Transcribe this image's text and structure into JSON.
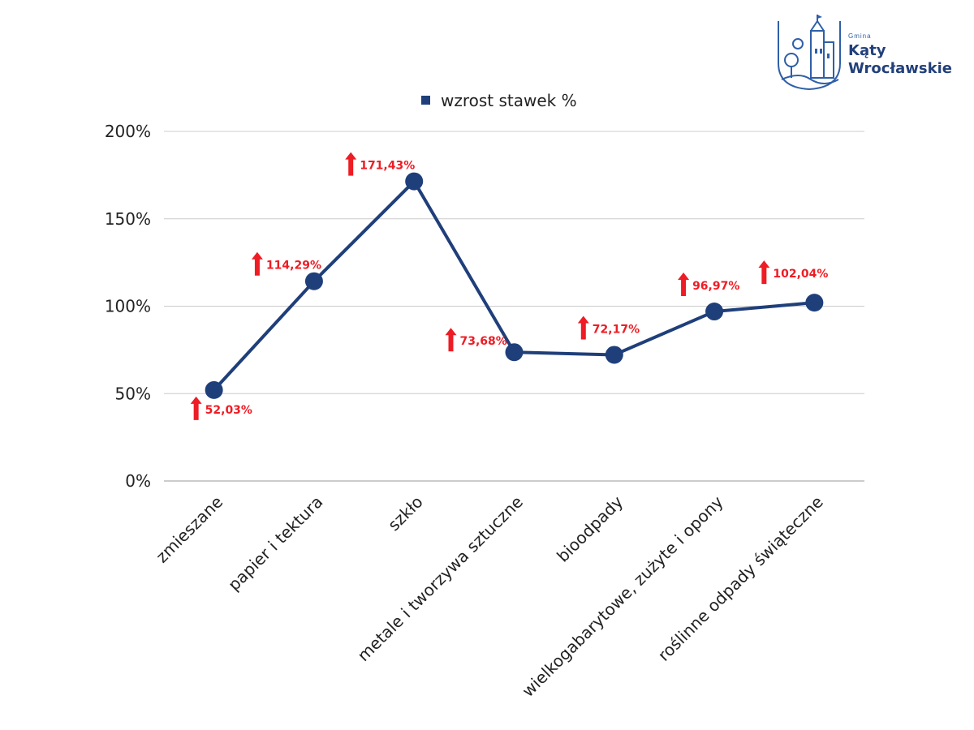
{
  "logo": {
    "small": "Gmina",
    "line1": "Kąty",
    "line2": "Wrocławskie"
  },
  "colors": {
    "series": "#1f3f7a",
    "arrow": "#ee1c24",
    "grid": "#cccccc",
    "axis_text": "#222222",
    "logo": "#2f5fa8"
  },
  "chart_data": {
    "type": "line",
    "legend": {
      "position": "top-center"
    },
    "grid": true,
    "ylim": [
      0,
      2
    ],
    "ytick_values": [
      0,
      0.5,
      1,
      1.5,
      2
    ],
    "ytick_labels": [
      "0%",
      "50%",
      "100%",
      "150%",
      "200%"
    ],
    "categories": [
      "zmieszane",
      "papier i tektura",
      "szkło",
      "metale i tworzywa sztuczne",
      "bioodpady",
      "wielkogabarytowe, zużyte i opony",
      "roślinne odpady świąteczne"
    ],
    "series": [
      {
        "name": "wzrost stawek %",
        "values": [
          0.5203,
          1.1429,
          1.7143,
          0.7368,
          0.7217,
          0.9697,
          1.0204
        ],
        "data_labels": [
          "52,03%",
          "114,29%",
          "171,43%",
          "73,68%",
          "72,17%",
          "96,97%",
          "102,04%"
        ]
      }
    ]
  }
}
